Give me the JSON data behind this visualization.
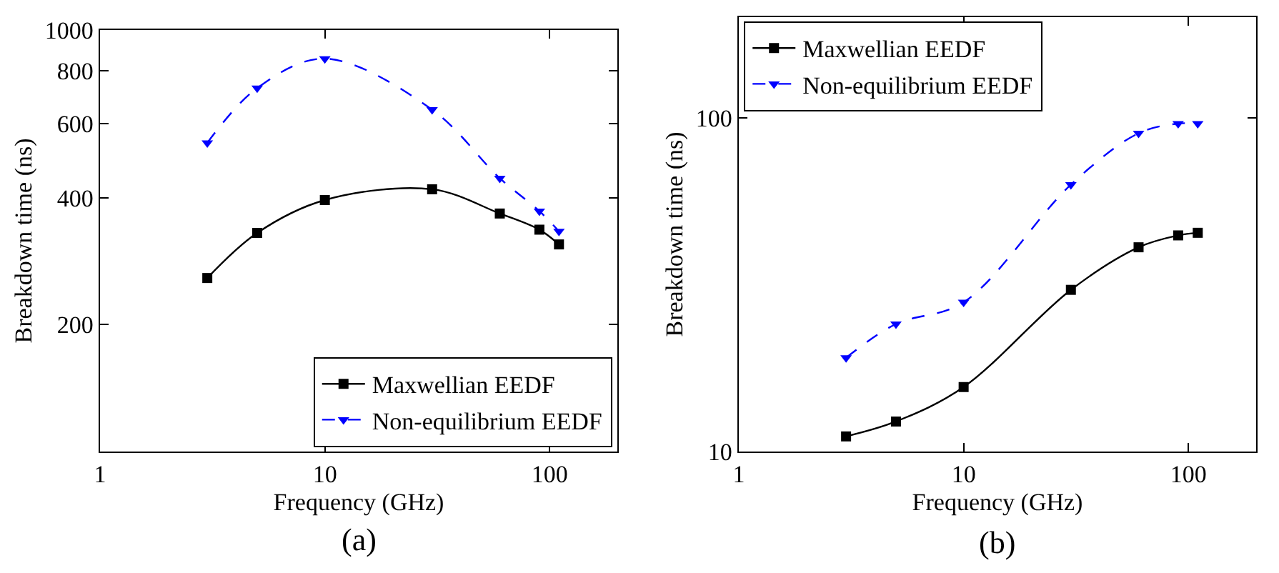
{
  "chart_data": [
    {
      "type": "line",
      "xlabel": "Frequency (GHz)",
      "ylabel": "Breakdown time (ns)",
      "annotations": [
        "(a)"
      ],
      "log": "xy",
      "grid": false,
      "legend": "bottom right",
      "xlim": [
        1,
        200
      ],
      "xticks": [
        1,
        10,
        100
      ],
      "ylim": [
        100,
        1000
      ],
      "yticks": [
        200,
        400,
        600,
        800,
        1000
      ],
      "x": [
        3,
        5,
        10,
        30,
        60,
        90,
        110
      ],
      "series": [
        {
          "name": "Maxwellian EEDF",
          "color": "#000000",
          "marker": "square",
          "line_style": "solid",
          "values": [
            258,
            330,
            395,
            419,
            367,
            336,
            310
          ]
        },
        {
          "name": "Non-equilibrium EEDF",
          "color": "#0000ff",
          "marker": "triangle",
          "line_style": "dashed",
          "values": [
            540,
            728,
            855,
            647,
            445,
            372,
            333
          ]
        }
      ]
    },
    {
      "type": "line",
      "xlabel": "Frequency (GHz)",
      "ylabel": "Breakdown time (ns)",
      "annotations": [
        "(b)"
      ],
      "log": "xy",
      "grid": false,
      "legend": "top left",
      "xlim": [
        1,
        200
      ],
      "xticks": [
        1,
        10,
        100
      ],
      "ylim": [
        10,
        200
      ],
      "yticks": [
        10,
        100
      ],
      "x": [
        3,
        5,
        10,
        30,
        60,
        90,
        110
      ],
      "series": [
        {
          "name": "Maxwellian EEDF",
          "color": "#000000",
          "marker": "square",
          "line_style": "solid",
          "values": [
            11.1,
            12.3,
            15.6,
            30.5,
            40.9,
            44.4,
            45.2
          ]
        },
        {
          "name": "Non-equilibrium EEDF",
          "color": "#0000ff",
          "marker": "triangle",
          "line_style": "dashed",
          "values": [
            19.1,
            24.1,
            28.0,
            63,
            89.8,
            96,
            96
          ]
        }
      ]
    }
  ]
}
